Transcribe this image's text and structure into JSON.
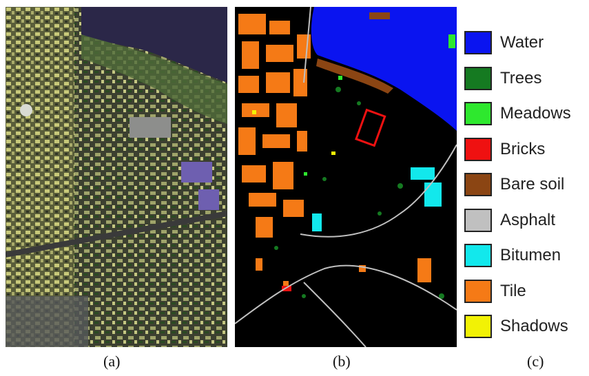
{
  "panels": {
    "a": {
      "caption": "(a)"
    },
    "b": {
      "caption": "(b)"
    },
    "c": {
      "caption": "(c)"
    }
  },
  "legend": [
    {
      "label": "Water",
      "color": "#0a14f0"
    },
    {
      "label": "Trees",
      "color": "#157a21"
    },
    {
      "label": "Meadows",
      "color": "#2ee82e"
    },
    {
      "label": "Bricks",
      "color": "#ef1111"
    },
    {
      "label": "Bare soil",
      "color": "#8b4513"
    },
    {
      "label": "Asphalt",
      "color": "#c0c0c0"
    },
    {
      "label": "Bitumen",
      "color": "#12e8ec"
    },
    {
      "label": "Tile",
      "color": "#f57a16"
    },
    {
      "label": "Shadows",
      "color": "#f2f205"
    }
  ]
}
